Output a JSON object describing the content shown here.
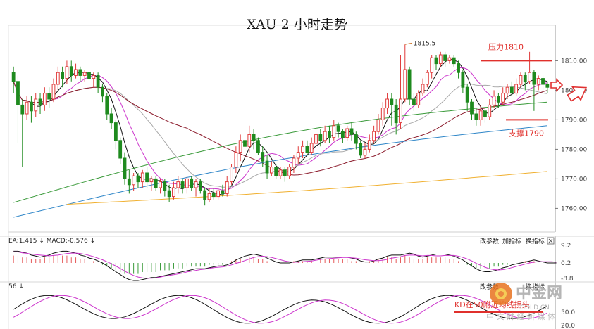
{
  "title": "XAU 2 小时走势",
  "chart_data": {
    "type": "candlestick",
    "ylim": [
      1752,
      1822
    ],
    "yticks": [
      "1810.00",
      "1800.00",
      "1790.00",
      "1780.00",
      "1770.00",
      "1760.00"
    ],
    "ytick_values": [
      1810,
      1800,
      1790,
      1780,
      1770,
      1760
    ],
    "resistance": {
      "label": "压力1810",
      "value": 1810
    },
    "support": {
      "label": "支撑1790",
      "value": 1790
    },
    "peak_label": "1815.5",
    "peak_value": 1815.5,
    "candles": [
      [
        1806,
        1803,
        1808,
        1799
      ],
      [
        1803,
        1795,
        1805,
        1782
      ],
      [
        1795,
        1792,
        1797,
        1774
      ],
      [
        1792,
        1796,
        1798,
        1790
      ],
      [
        1796,
        1793,
        1798,
        1789
      ],
      [
        1793,
        1797,
        1799,
        1791
      ],
      [
        1797,
        1795,
        1799,
        1792
      ],
      [
        1795,
        1799,
        1801,
        1793
      ],
      [
        1799,
        1797,
        1801,
        1794
      ],
      [
        1797,
        1802,
        1804,
        1796
      ],
      [
        1802,
        1806,
        1808,
        1800
      ],
      [
        1806,
        1804,
        1808,
        1801
      ],
      [
        1804,
        1808,
        1810,
        1802
      ],
      [
        1808,
        1805,
        1810,
        1803
      ],
      [
        1805,
        1807,
        1809,
        1804
      ],
      [
        1807,
        1805,
        1808,
        1803
      ],
      [
        1805,
        1806,
        1807,
        1803
      ],
      [
        1806,
        1804,
        1807,
        1802
      ],
      [
        1804,
        1805,
        1806,
        1801
      ],
      [
        1805,
        1801,
        1806,
        1799
      ],
      [
        1801,
        1798,
        1802,
        1796
      ],
      [
        1798,
        1792,
        1799,
        1790
      ],
      [
        1792,
        1789,
        1794,
        1787
      ],
      [
        1789,
        1783,
        1790,
        1780
      ],
      [
        1783,
        1777,
        1784,
        1775
      ],
      [
        1777,
        1770,
        1779,
        1768
      ],
      [
        1770,
        1768,
        1773,
        1765
      ],
      [
        1768,
        1771,
        1772,
        1766
      ],
      [
        1771,
        1769,
        1772,
        1767
      ],
      [
        1769,
        1772,
        1773,
        1767
      ],
      [
        1772,
        1769,
        1774,
        1767
      ],
      [
        1769,
        1770,
        1771,
        1766
      ],
      [
        1770,
        1767,
        1771,
        1766
      ],
      [
        1767,
        1769,
        1770,
        1765
      ],
      [
        1769,
        1766,
        1770,
        1764
      ],
      [
        1766,
        1764,
        1768,
        1762
      ],
      [
        1764,
        1767,
        1769,
        1763
      ],
      [
        1767,
        1769,
        1771,
        1765
      ],
      [
        1769,
        1767,
        1770,
        1765
      ],
      [
        1767,
        1770,
        1771,
        1765
      ],
      [
        1770,
        1767,
        1771,
        1766
      ],
      [
        1767,
        1769,
        1770,
        1764
      ],
      [
        1769,
        1766,
        1770,
        1765
      ],
      [
        1766,
        1763,
        1767,
        1761
      ],
      [
        1763,
        1765,
        1767,
        1762
      ],
      [
        1765,
        1764,
        1767,
        1763
      ],
      [
        1764,
        1766,
        1767,
        1763
      ],
      [
        1766,
        1765,
        1768,
        1764
      ],
      [
        1765,
        1769,
        1771,
        1764
      ],
      [
        1769,
        1774,
        1775,
        1768
      ],
      [
        1774,
        1779,
        1781,
        1772
      ],
      [
        1779,
        1783,
        1785,
        1776
      ],
      [
        1783,
        1781,
        1786,
        1778
      ],
      [
        1781,
        1785,
        1788,
        1779
      ],
      [
        1785,
        1783,
        1787,
        1780
      ],
      [
        1783,
        1779,
        1784,
        1778
      ],
      [
        1779,
        1776,
        1781,
        1774
      ],
      [
        1776,
        1772,
        1778,
        1770
      ],
      [
        1772,
        1774,
        1776,
        1771
      ],
      [
        1774,
        1771,
        1775,
        1770
      ],
      [
        1771,
        1773,
        1774,
        1770
      ],
      [
        1773,
        1771,
        1774,
        1769
      ],
      [
        1771,
        1774,
        1775,
        1770
      ],
      [
        1774,
        1777,
        1778,
        1772
      ],
      [
        1777,
        1779,
        1781,
        1775
      ],
      [
        1779,
        1781,
        1783,
        1777
      ],
      [
        1781,
        1779,
        1783,
        1778
      ],
      [
        1779,
        1782,
        1784,
        1778
      ],
      [
        1782,
        1785,
        1786,
        1780
      ],
      [
        1785,
        1783,
        1787,
        1781
      ],
      [
        1783,
        1786,
        1788,
        1782
      ],
      [
        1786,
        1784,
        1788,
        1782
      ],
      [
        1784,
        1788,
        1790,
        1783
      ],
      [
        1788,
        1786,
        1789,
        1784
      ],
      [
        1786,
        1784,
        1787,
        1782
      ],
      [
        1784,
        1787,
        1788,
        1783
      ],
      [
        1787,
        1785,
        1789,
        1783
      ],
      [
        1785,
        1782,
        1786,
        1780
      ],
      [
        1782,
        1778,
        1783,
        1777
      ],
      [
        1778,
        1780,
        1782,
        1777
      ],
      [
        1780,
        1783,
        1785,
        1779
      ],
      [
        1783,
        1786,
        1788,
        1782
      ],
      [
        1786,
        1790,
        1792,
        1785
      ],
      [
        1790,
        1794,
        1796,
        1788
      ],
      [
        1794,
        1797,
        1799,
        1792
      ],
      [
        1797,
        1795,
        1799,
        1788
      ],
      [
        1795,
        1789,
        1797,
        1785
      ],
      [
        1789,
        1797,
        1812,
        1787
      ],
      [
        1797,
        1807,
        1815.5,
        1796
      ],
      [
        1807,
        1797,
        1808,
        1795
      ],
      [
        1797,
        1795,
        1799,
        1793
      ],
      [
        1795,
        1799,
        1800,
        1794
      ],
      [
        1799,
        1802,
        1804,
        1798
      ],
      [
        1802,
        1806,
        1807,
        1801
      ],
      [
        1806,
        1811,
        1812,
        1804
      ],
      [
        1811,
        1809,
        1812,
        1807
      ],
      [
        1809,
        1812,
        1813,
        1808
      ],
      [
        1812,
        1810,
        1813,
        1808
      ],
      [
        1810,
        1811,
        1812,
        1809
      ],
      [
        1811,
        1809,
        1812,
        1808
      ],
      [
        1809,
        1806,
        1810,
        1804
      ],
      [
        1806,
        1801,
        1807,
        1799
      ],
      [
        1801,
        1796,
        1802,
        1793
      ],
      [
        1796,
        1792,
        1797,
        1790
      ],
      [
        1792,
        1790,
        1794,
        1788
      ],
      [
        1790,
        1793,
        1795,
        1788
      ],
      [
        1793,
        1791,
        1794,
        1789
      ],
      [
        1791,
        1795,
        1797,
        1790
      ],
      [
        1795,
        1798,
        1800,
        1794
      ],
      [
        1798,
        1796,
        1799,
        1794
      ],
      [
        1796,
        1799,
        1801,
        1795
      ],
      [
        1799,
        1801,
        1802,
        1797
      ],
      [
        1801,
        1799,
        1803,
        1798
      ],
      [
        1799,
        1802,
        1804,
        1798
      ],
      [
        1802,
        1805,
        1806,
        1801
      ],
      [
        1805,
        1803,
        1806,
        1800
      ],
      [
        1803,
        1806,
        1813,
        1802
      ],
      [
        1806,
        1802,
        1807,
        1793
      ],
      [
        1802,
        1804,
        1805,
        1800
      ],
      [
        1804,
        1802,
        1805,
        1800
      ],
      [
        1802,
        1801,
        1803,
        1799
      ]
    ],
    "macd_label": "EA:1.415 ↓  MACD:-0.576 ↓",
    "macd_ticks": [
      "9.2",
      "0.2",
      "-8.8"
    ],
    "macd_hist": [
      4,
      4,
      3,
      3,
      2,
      2,
      2,
      3,
      3,
      4,
      4,
      4,
      4,
      3,
      3,
      2,
      2,
      1,
      1,
      0,
      -1,
      -2,
      -3,
      -4,
      -5,
      -6,
      -6,
      -6,
      -6,
      -5,
      -5,
      -5,
      -5,
      -4,
      -4,
      -4,
      -3,
      -3,
      -3,
      -2,
      -2,
      -2,
      -2,
      -2,
      -1,
      -1,
      -1,
      -1,
      0,
      1,
      2,
      2,
      3,
      3,
      3,
      2,
      2,
      1,
      0,
      0,
      0,
      0,
      0,
      1,
      1,
      1,
      1,
      1,
      2,
      2,
      2,
      2,
      2,
      2,
      2,
      2,
      1,
      1,
      0,
      0,
      1,
      1,
      2,
      2,
      3,
      3,
      2,
      3,
      4,
      3,
      2,
      2,
      2,
      3,
      3,
      3,
      3,
      3,
      2,
      2,
      1,
      0,
      -1,
      -2,
      -3,
      -3,
      -3,
      -3,
      -2,
      -2,
      -1,
      -1,
      0,
      0,
      0,
      1,
      1,
      1,
      0,
      0,
      0,
      0,
      0
    ],
    "toolbar": [
      "改参数",
      "加指标",
      "换指标"
    ],
    "kd_label": "56 ↓",
    "kd_ticks": [
      "50.0",
      "20.0"
    ],
    "kd_note": "KD在50附近均线拐头",
    "watermark": {
      "name": "中金网",
      "sub": "中 文 财 经 新 媒 体",
      "url": "GOLD.CN"
    }
  }
}
